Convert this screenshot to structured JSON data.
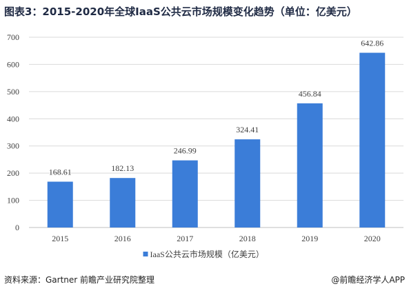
{
  "title": "图表3：2015-2020年全球IaaS公共云市场规模变化趋势（单位：亿美元）",
  "footer": {
    "source": "资料来源：Gartner 前瞻产业研究院整理",
    "brand": "@前瞻经济学人APP"
  },
  "colors": {
    "bar": "#3b7dd8",
    "grid": "#d9d9d9",
    "axis": "#bfbfbf",
    "text": "#404040"
  },
  "chart_data": {
    "type": "bar",
    "categories": [
      "2015",
      "2016",
      "2017",
      "2018",
      "2019",
      "2020"
    ],
    "series": [
      {
        "name": "IaaS公共云市场规模（亿美元）",
        "values": [
          168.61,
          182.13,
          246.99,
          324.41,
          456.84,
          642.86
        ],
        "labels": [
          "168.61",
          "182.13",
          "246.99",
          "324.41",
          "456.84",
          "642.86"
        ]
      }
    ],
    "ylim": [
      0,
      700
    ],
    "yticks": [
      "0",
      "100",
      "200",
      "300",
      "400",
      "500",
      "600",
      "700"
    ],
    "grid": true,
    "legend": "bottom"
  }
}
